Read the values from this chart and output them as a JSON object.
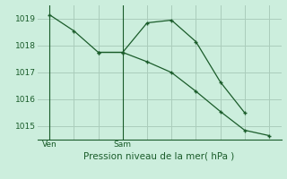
{
  "background_color": "#cceedd",
  "grid_color": "#aaccbb",
  "line_color": "#1a5c2a",
  "title": "Pression niveau de la mer( hPa )",
  "ylim": [
    1014.5,
    1019.5
  ],
  "yticks": [
    1015,
    1016,
    1017,
    1018,
    1019
  ],
  "xlim": [
    0,
    10
  ],
  "ven_x": 0.5,
  "sam_x": 3.5,
  "series1_x": [
    0.5,
    1.5,
    2.5,
    3.5,
    4.5,
    5.5,
    6.5,
    7.5,
    8.5
  ],
  "series1_y": [
    1019.15,
    1018.55,
    1017.75,
    1017.75,
    1018.85,
    1018.95,
    1018.15,
    1016.65,
    1015.5
  ],
  "series2_x": [
    2.5,
    3.5,
    4.5,
    5.5,
    6.5,
    7.5,
    8.5,
    9.5
  ],
  "series2_y": [
    1017.75,
    1017.75,
    1017.4,
    1017.0,
    1016.3,
    1015.55,
    1014.85,
    1014.65
  ],
  "xtick_positions": [
    0.5,
    3.5
  ],
  "xtick_labels": [
    "Ven",
    "Sam"
  ],
  "title_fontsize": 7.5,
  "tick_fontsize": 6.5
}
